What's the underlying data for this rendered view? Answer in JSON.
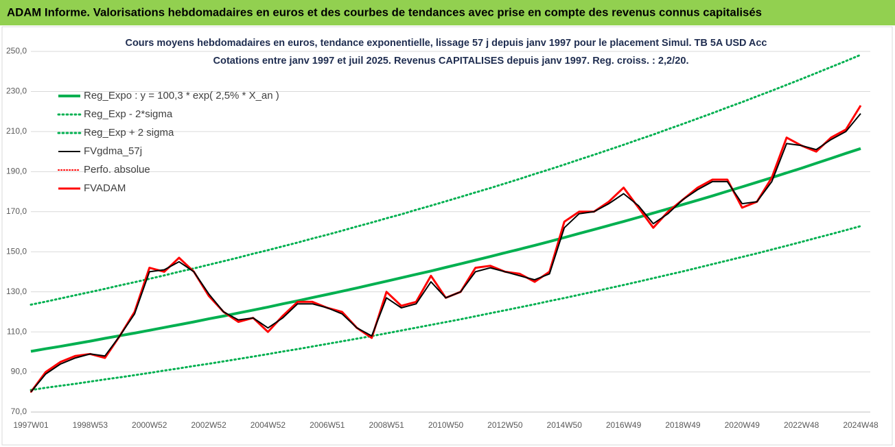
{
  "chart_data": {
    "type": "line",
    "title": "ADAM Informe. Valorisations hebdomadaires en euros et des courbes de tendances avec prise en compte des revenus connus capitalisés",
    "subtitle": [
      "Cours moyens hebdomadaires en euros, tendance exponentielle, lissage 57 j depuis janv 1997 pour le placement Simul. TB 5A USD Acc",
      "Cotations entre janv 1997 et juil 2025. Revenus CAPITALISES depuis janv 1997.  Reg. croiss. : 2,2/20."
    ],
    "categories": [
      "1997W01",
      null,
      null,
      null,
      "1998W53",
      null,
      null,
      null,
      "2000W52",
      null,
      null,
      null,
      "2002W52",
      null,
      null,
      null,
      "2004W52",
      null,
      null,
      null,
      "2006W51",
      null,
      null,
      null,
      "2008W51",
      null,
      null,
      null,
      "2010W50",
      null,
      null,
      null,
      "2012W50",
      null,
      null,
      null,
      "2014W50",
      null,
      null,
      null,
      "2016W49",
      null,
      null,
      null,
      "2018W49",
      null,
      null,
      null,
      "2020W49",
      null,
      null,
      null,
      "2022W48",
      null,
      null,
      null,
      "2024W48"
    ],
    "ylim": [
      70,
      250
    ],
    "yticks": [
      {
        "value": 70,
        "label": "70,0"
      },
      {
        "value": 90,
        "label": "90,0"
      },
      {
        "value": 110,
        "label": "110,0"
      },
      {
        "value": 130,
        "label": "130,0"
      },
      {
        "value": 150,
        "label": "150,0"
      },
      {
        "value": 170,
        "label": "170,0"
      },
      {
        "value": 190,
        "label": "190,0"
      },
      {
        "value": 210,
        "label": "210,0"
      },
      {
        "value": 230,
        "label": "230,0"
      },
      {
        "value": 250,
        "label": "250,0"
      }
    ],
    "grid": true,
    "legend": "top-left",
    "series": [
      {
        "name": "Reg_Expo : y = 100,3 * exp( 2,5% *  X_an )",
        "color": "#00b050",
        "dash": "solid",
        "width": 4,
        "values": [
          100.3,
          101.6,
          102.8,
          104.1,
          105.4,
          106.8,
          108.1,
          109.4,
          110.8,
          112.2,
          113.6,
          115.0,
          116.5,
          117.9,
          119.4,
          120.9,
          122.4,
          124.0,
          125.5,
          127.1,
          128.7,
          130.3,
          131.9,
          133.6,
          135.3,
          137.0,
          138.7,
          140.4,
          142.2,
          144.0,
          145.8,
          147.6,
          149.5,
          151.3,
          153.2,
          155.1,
          157.1,
          159.1,
          161.1,
          163.1,
          165.1,
          167.2,
          169.3,
          171.4,
          173.6,
          175.7,
          177.9,
          180.2,
          182.4,
          184.7,
          187.0,
          189.4,
          191.7,
          194.2,
          196.6,
          199.1,
          201.5
        ]
      },
      {
        "name": "Reg_Exp - 2*sigma",
        "color": "#00b050",
        "dash": "dotted",
        "width": 3,
        "values": [
          81.0,
          82.1,
          83.1,
          84.1,
          85.2,
          86.3,
          87.3,
          88.4,
          89.5,
          90.7,
          91.8,
          93.0,
          94.1,
          95.3,
          96.5,
          97.7,
          98.9,
          100.2,
          101.4,
          102.7,
          104.0,
          105.3,
          106.6,
          107.9,
          109.3,
          110.7,
          112.1,
          113.5,
          114.9,
          116.3,
          117.8,
          119.3,
          120.8,
          122.3,
          123.8,
          125.4,
          126.9,
          128.5,
          130.1,
          131.8,
          133.4,
          135.1,
          136.8,
          138.5,
          140.2,
          142.0,
          143.8,
          145.6,
          147.4,
          149.2,
          151.1,
          153.0,
          154.9,
          156.9,
          158.8,
          160.8,
          162.8
        ]
      },
      {
        "name": "Reg_Exp + 2 sigma",
        "color": "#00b050",
        "dash": "dotted",
        "width": 3,
        "values": [
          123.6,
          125.1,
          126.7,
          128.3,
          129.9,
          131.5,
          133.2,
          134.8,
          136.5,
          138.2,
          140.0,
          141.7,
          143.5,
          145.3,
          147.1,
          149.0,
          150.8,
          152.7,
          154.6,
          156.6,
          158.5,
          160.5,
          162.6,
          164.6,
          166.7,
          168.7,
          170.9,
          173.0,
          175.2,
          177.4,
          179.6,
          181.8,
          184.1,
          186.4,
          188.8,
          191.1,
          193.5,
          196.0,
          198.4,
          200.9,
          203.4,
          206.0,
          208.5,
          211.2,
          213.8,
          216.5,
          219.2,
          222.0,
          224.7,
          227.6,
          230.4,
          233.3,
          236.2,
          239.2,
          242.2,
          245.2,
          248.3
        ]
      },
      {
        "name": "FVgdma_57j",
        "color": "#000000",
        "dash": "solid",
        "width": 2,
        "values": [
          80,
          89,
          94,
          97,
          99,
          98,
          108,
          119,
          140,
          141,
          145,
          140,
          129,
          120,
          116,
          117,
          112,
          117,
          124,
          124,
          122,
          119,
          112,
          108,
          127,
          122,
          124,
          135,
          127,
          130,
          140,
          142,
          140,
          138,
          136,
          139,
          162,
          169,
          170,
          174,
          179,
          173,
          164,
          169,
          176,
          181,
          185,
          185,
          174,
          175,
          185,
          204,
          203,
          201,
          206,
          210,
          219
        ]
      },
      {
        "name": "Perfo. absolue",
        "color": "#ff0000",
        "dash": "dotted",
        "width": 2,
        "values": [
          80,
          90,
          95,
          98,
          99,
          97,
          108,
          120,
          142,
          140,
          147,
          140,
          128,
          120,
          115,
          117,
          110,
          118,
          125,
          125,
          122,
          120,
          112,
          107,
          130,
          123,
          125,
          138,
          127,
          130,
          142,
          143,
          140,
          139,
          135,
          140,
          165,
          170,
          170,
          175,
          182,
          172,
          162,
          170,
          176,
          182,
          186,
          186,
          172,
          175,
          187,
          207,
          203,
          200,
          207,
          211,
          223
        ]
      },
      {
        "name": "FVADAM",
        "color": "#ff0000",
        "dash": "solid",
        "width": 3,
        "values": [
          80,
          90,
          95,
          98,
          99,
          97,
          108,
          120,
          142,
          140,
          147,
          140,
          128,
          120,
          115,
          117,
          110,
          118,
          125,
          125,
          122,
          120,
          112,
          107,
          130,
          123,
          125,
          138,
          127,
          130,
          142,
          143,
          140,
          139,
          135,
          140,
          165,
          170,
          170,
          175,
          182,
          172,
          162,
          170,
          176,
          182,
          186,
          186,
          172,
          175,
          187,
          207,
          203,
          200,
          207,
          211,
          223
        ]
      }
    ]
  }
}
